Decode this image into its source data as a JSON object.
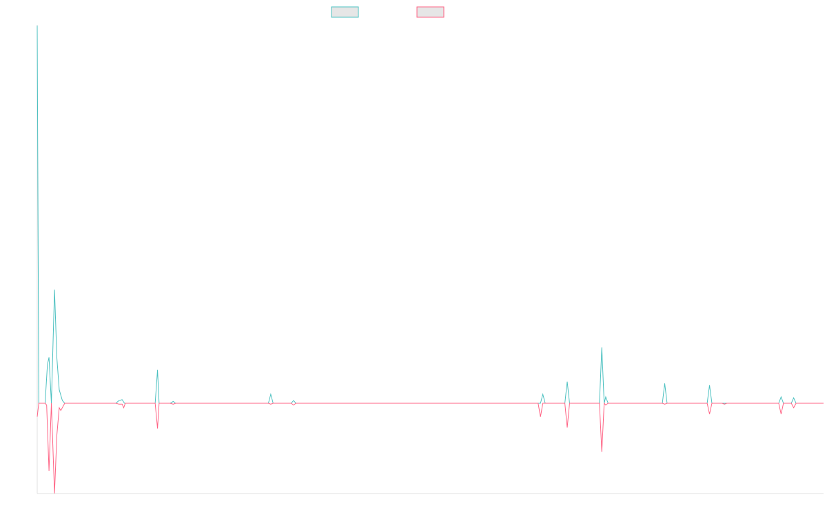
{
  "chart_data": {
    "type": "line",
    "title": "",
    "xlabel": "",
    "ylabel": "",
    "grid": false,
    "legend_position": "top-center",
    "baseline": 0,
    "ylim": [
      -100,
      420
    ],
    "xlim": [
      0,
      1000
    ],
    "series": [
      {
        "color": "#4bc0c0",
        "fill": "#e6e6e6",
        "points": [
          [
            0,
            419
          ],
          [
            2,
            0
          ],
          [
            10,
            0
          ],
          [
            13,
            43
          ],
          [
            15,
            51
          ],
          [
            18,
            0
          ],
          [
            22,
            126
          ],
          [
            25,
            50
          ],
          [
            28,
            15
          ],
          [
            32,
            3
          ],
          [
            35,
            0
          ],
          [
            100,
            0
          ],
          [
            104,
            3
          ],
          [
            108,
            4
          ],
          [
            111,
            0
          ],
          [
            150,
            0
          ],
          [
            153,
            37
          ],
          [
            155,
            0
          ],
          [
            169,
            0
          ],
          [
            173,
            2
          ],
          [
            176,
            0
          ],
          [
            294,
            0
          ],
          [
            297,
            10
          ],
          [
            300,
            0
          ],
          [
            323,
            0
          ],
          [
            326,
            3
          ],
          [
            329,
            0
          ],
          [
            640,
            0
          ],
          [
            643,
            10
          ],
          [
            646,
            0
          ],
          [
            671,
            0
          ],
          [
            674,
            24
          ],
          [
            677,
            0
          ],
          [
            715,
            0
          ],
          [
            718,
            62
          ],
          [
            721,
            0
          ],
          [
            723,
            7
          ],
          [
            726,
            0
          ],
          [
            795,
            0
          ],
          [
            798,
            22
          ],
          [
            801,
            0
          ],
          [
            852,
            0
          ],
          [
            855,
            20
          ],
          [
            858,
            0
          ],
          [
            943,
            0
          ],
          [
            946,
            7
          ],
          [
            949,
            0
          ],
          [
            959,
            0
          ],
          [
            962,
            6
          ],
          [
            965,
            0
          ],
          [
            1000,
            0
          ]
        ]
      },
      {
        "color": "#ff6384",
        "fill": "#e6e6e6",
        "points": [
          [
            0,
            -15
          ],
          [
            2,
            0
          ],
          [
            10,
            0
          ],
          [
            12,
            -2
          ],
          [
            15,
            -75
          ],
          [
            18,
            0
          ],
          [
            22,
            -100
          ],
          [
            25,
            -35
          ],
          [
            28,
            -5
          ],
          [
            30,
            -8
          ],
          [
            35,
            0
          ],
          [
            100,
            0
          ],
          [
            104,
            -1
          ],
          [
            108,
            -1
          ],
          [
            110,
            -5
          ],
          [
            112,
            0
          ],
          [
            150,
            0
          ],
          [
            153,
            -28
          ],
          [
            155,
            0
          ],
          [
            169,
            0
          ],
          [
            173,
            -1
          ],
          [
            176,
            0
          ],
          [
            294,
            0
          ],
          [
            297,
            -1
          ],
          [
            300,
            0
          ],
          [
            323,
            0
          ],
          [
            326,
            -2
          ],
          [
            329,
            0
          ],
          [
            637,
            0
          ],
          [
            640,
            -15
          ],
          [
            643,
            0
          ],
          [
            671,
            0
          ],
          [
            674,
            -27
          ],
          [
            677,
            0
          ],
          [
            715,
            0
          ],
          [
            718,
            -54
          ],
          [
            721,
            0
          ],
          [
            723,
            -2
          ],
          [
            726,
            0
          ],
          [
            795,
            0
          ],
          [
            798,
            -1
          ],
          [
            801,
            0
          ],
          [
            852,
            0
          ],
          [
            855,
            -12
          ],
          [
            858,
            0
          ],
          [
            871,
            0
          ],
          [
            874,
            -1
          ],
          [
            877,
            0
          ],
          [
            943,
            0
          ],
          [
            946,
            -12
          ],
          [
            949,
            0
          ],
          [
            959,
            0
          ],
          [
            962,
            -5
          ],
          [
            965,
            0
          ],
          [
            1000,
            0
          ]
        ]
      }
    ]
  }
}
